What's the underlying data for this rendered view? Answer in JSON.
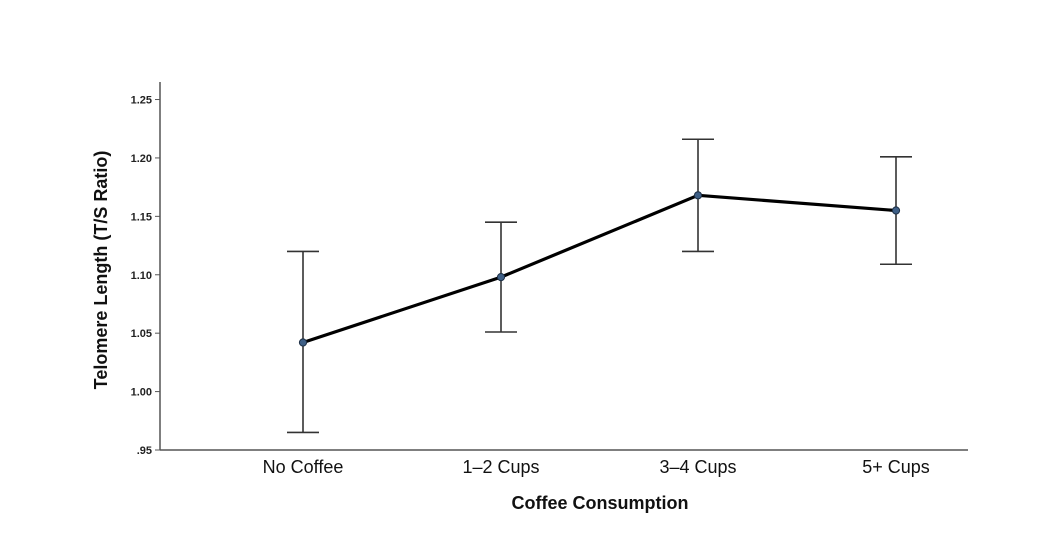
{
  "chart_data": {
    "type": "line",
    "title": "",
    "xlabel": "Coffee Consumption",
    "ylabel": "Telomere Length (T/S Ratio)",
    "categories": [
      "No Coffee",
      "1–2 Cups",
      "3–4 Cups",
      "5+ Cups"
    ],
    "y_ticks": [
      ".95",
      "1.00",
      "1.05",
      "1.10",
      "1.15",
      "1.20",
      "1.25"
    ],
    "y_tick_values": [
      0.95,
      1.0,
      1.05,
      1.1,
      1.15,
      1.2,
      1.25
    ],
    "ylim": [
      0.95,
      1.265
    ],
    "grid": false,
    "series": [
      {
        "values": [
          1.042,
          1.098,
          1.168,
          1.155
        ],
        "error_low": [
          0.965,
          1.051,
          1.12,
          1.109
        ],
        "error_high": [
          1.12,
          1.145,
          1.216,
          1.201
        ]
      }
    ],
    "colors": {
      "line": "#000000",
      "marker": "#3e5f86",
      "error_bar": "#333333",
      "axis": "#555555"
    }
  }
}
